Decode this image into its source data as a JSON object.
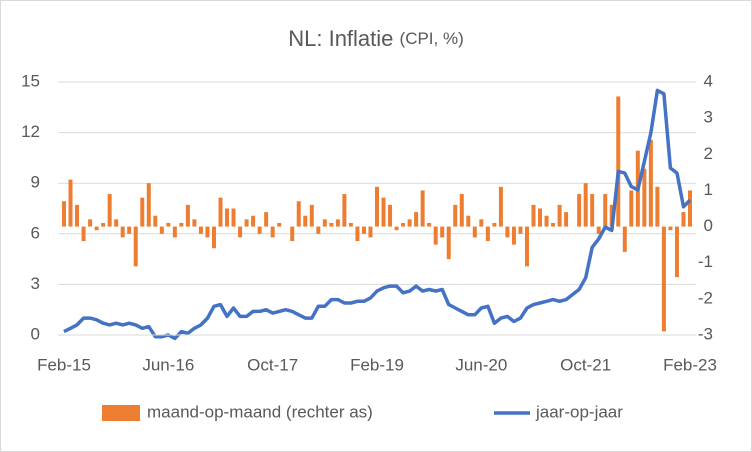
{
  "chart_data": {
    "type": "bar-line",
    "title": "NL: Inflatie",
    "subtitle": "(CPI, %)",
    "categories": [
      "Feb-15",
      null,
      null,
      null,
      null,
      null,
      null,
      null,
      null,
      null,
      null,
      null,
      null,
      null,
      null,
      null,
      "Jun-16",
      null,
      null,
      null,
      null,
      null,
      null,
      null,
      null,
      null,
      null,
      null,
      null,
      null,
      null,
      null,
      "Oct-17",
      null,
      null,
      null,
      null,
      null,
      null,
      null,
      null,
      null,
      null,
      null,
      null,
      null,
      null,
      null,
      "Feb-19",
      null,
      null,
      null,
      null,
      null,
      null,
      null,
      null,
      null,
      null,
      null,
      null,
      null,
      null,
      null,
      "Jun-20",
      null,
      null,
      null,
      null,
      null,
      null,
      null,
      null,
      null,
      null,
      null,
      null,
      null,
      null,
      null,
      "Oct-21",
      null,
      null,
      null,
      null,
      null,
      null,
      null,
      null,
      null,
      null,
      null,
      null,
      null,
      null,
      null,
      "Feb-23"
    ],
    "series": [
      {
        "name": "maand-op-maand (rechter as)",
        "kind": "bar",
        "axis": "y2",
        "color": "#ed7d31",
        "values": [
          0.7,
          1.3,
          0.6,
          -0.4,
          0.2,
          -0.1,
          0.1,
          0.9,
          0.2,
          -0.3,
          -0.2,
          -1.1,
          0.8,
          1.2,
          0.3,
          -0.2,
          0.1,
          -0.3,
          0.1,
          0.6,
          0.2,
          -0.2,
          -0.3,
          -0.6,
          0.8,
          0.5,
          0.5,
          -0.3,
          0.2,
          0.3,
          -0.2,
          0.4,
          -0.3,
          0.1,
          0.0,
          -0.4,
          0.7,
          0.3,
          0.6,
          -0.2,
          0.2,
          0.1,
          0.2,
          0.9,
          0.1,
          -0.4,
          -0.2,
          -0.3,
          1.1,
          0.8,
          0.6,
          -0.1,
          0.1,
          0.2,
          0.4,
          1.0,
          0.1,
          -0.5,
          -0.3,
          -0.9,
          0.6,
          0.9,
          0.3,
          -0.3,
          0.2,
          -0.4,
          0.1,
          1.1,
          -0.3,
          -0.5,
          -0.2,
          -1.1,
          0.6,
          0.5,
          0.3,
          0.1,
          0.6,
          0.4,
          0.0,
          0.9,
          1.2,
          0.9,
          -0.2,
          0.9,
          0.6,
          3.6,
          -0.7,
          1.0,
          2.1,
          1.6,
          2.4,
          1.1,
          -2.9,
          -0.1,
          -1.4,
          0.4,
          1.0
        ]
      },
      {
        "name": "jaar-op-jaar",
        "kind": "line",
        "axis": "y",
        "color": "#4472c4",
        "values": [
          0.2,
          0.4,
          0.6,
          1.0,
          1.0,
          0.9,
          0.7,
          0.6,
          0.7,
          0.6,
          0.7,
          0.6,
          0.4,
          0.5,
          -0.1,
          -0.1,
          0.0,
          -0.2,
          0.2,
          0.1,
          0.4,
          0.6,
          1.0,
          1.7,
          1.8,
          1.1,
          1.6,
          1.1,
          1.1,
          1.4,
          1.4,
          1.5,
          1.3,
          1.4,
          1.5,
          1.4,
          1.2,
          1.0,
          1.0,
          1.7,
          1.7,
          2.1,
          2.1,
          1.9,
          1.9,
          2.0,
          2.0,
          2.2,
          2.6,
          2.8,
          2.9,
          2.9,
          2.5,
          2.6,
          2.9,
          2.6,
          2.7,
          2.6,
          2.7,
          1.8,
          1.6,
          1.4,
          1.2,
          1.2,
          1.6,
          1.7,
          0.7,
          1.0,
          1.1,
          0.8,
          1.0,
          1.6,
          1.8,
          1.9,
          2.0,
          2.1,
          2.0,
          2.1,
          2.4,
          2.7,
          3.4,
          5.2,
          5.7,
          6.4,
          6.2,
          9.7,
          9.6,
          8.8,
          8.6,
          10.3,
          12.0,
          14.5,
          14.3,
          9.9,
          9.6,
          7.6,
          8.0
        ]
      }
    ],
    "ylim": [
      0,
      15
    ],
    "yticks": [
      0,
      3,
      6,
      9,
      12,
      15
    ],
    "y2lim": [
      -3,
      4
    ],
    "y2ticks": [
      -3,
      -2,
      -1,
      0,
      1,
      2,
      3,
      4
    ],
    "grid": true,
    "legend": "bottom"
  }
}
